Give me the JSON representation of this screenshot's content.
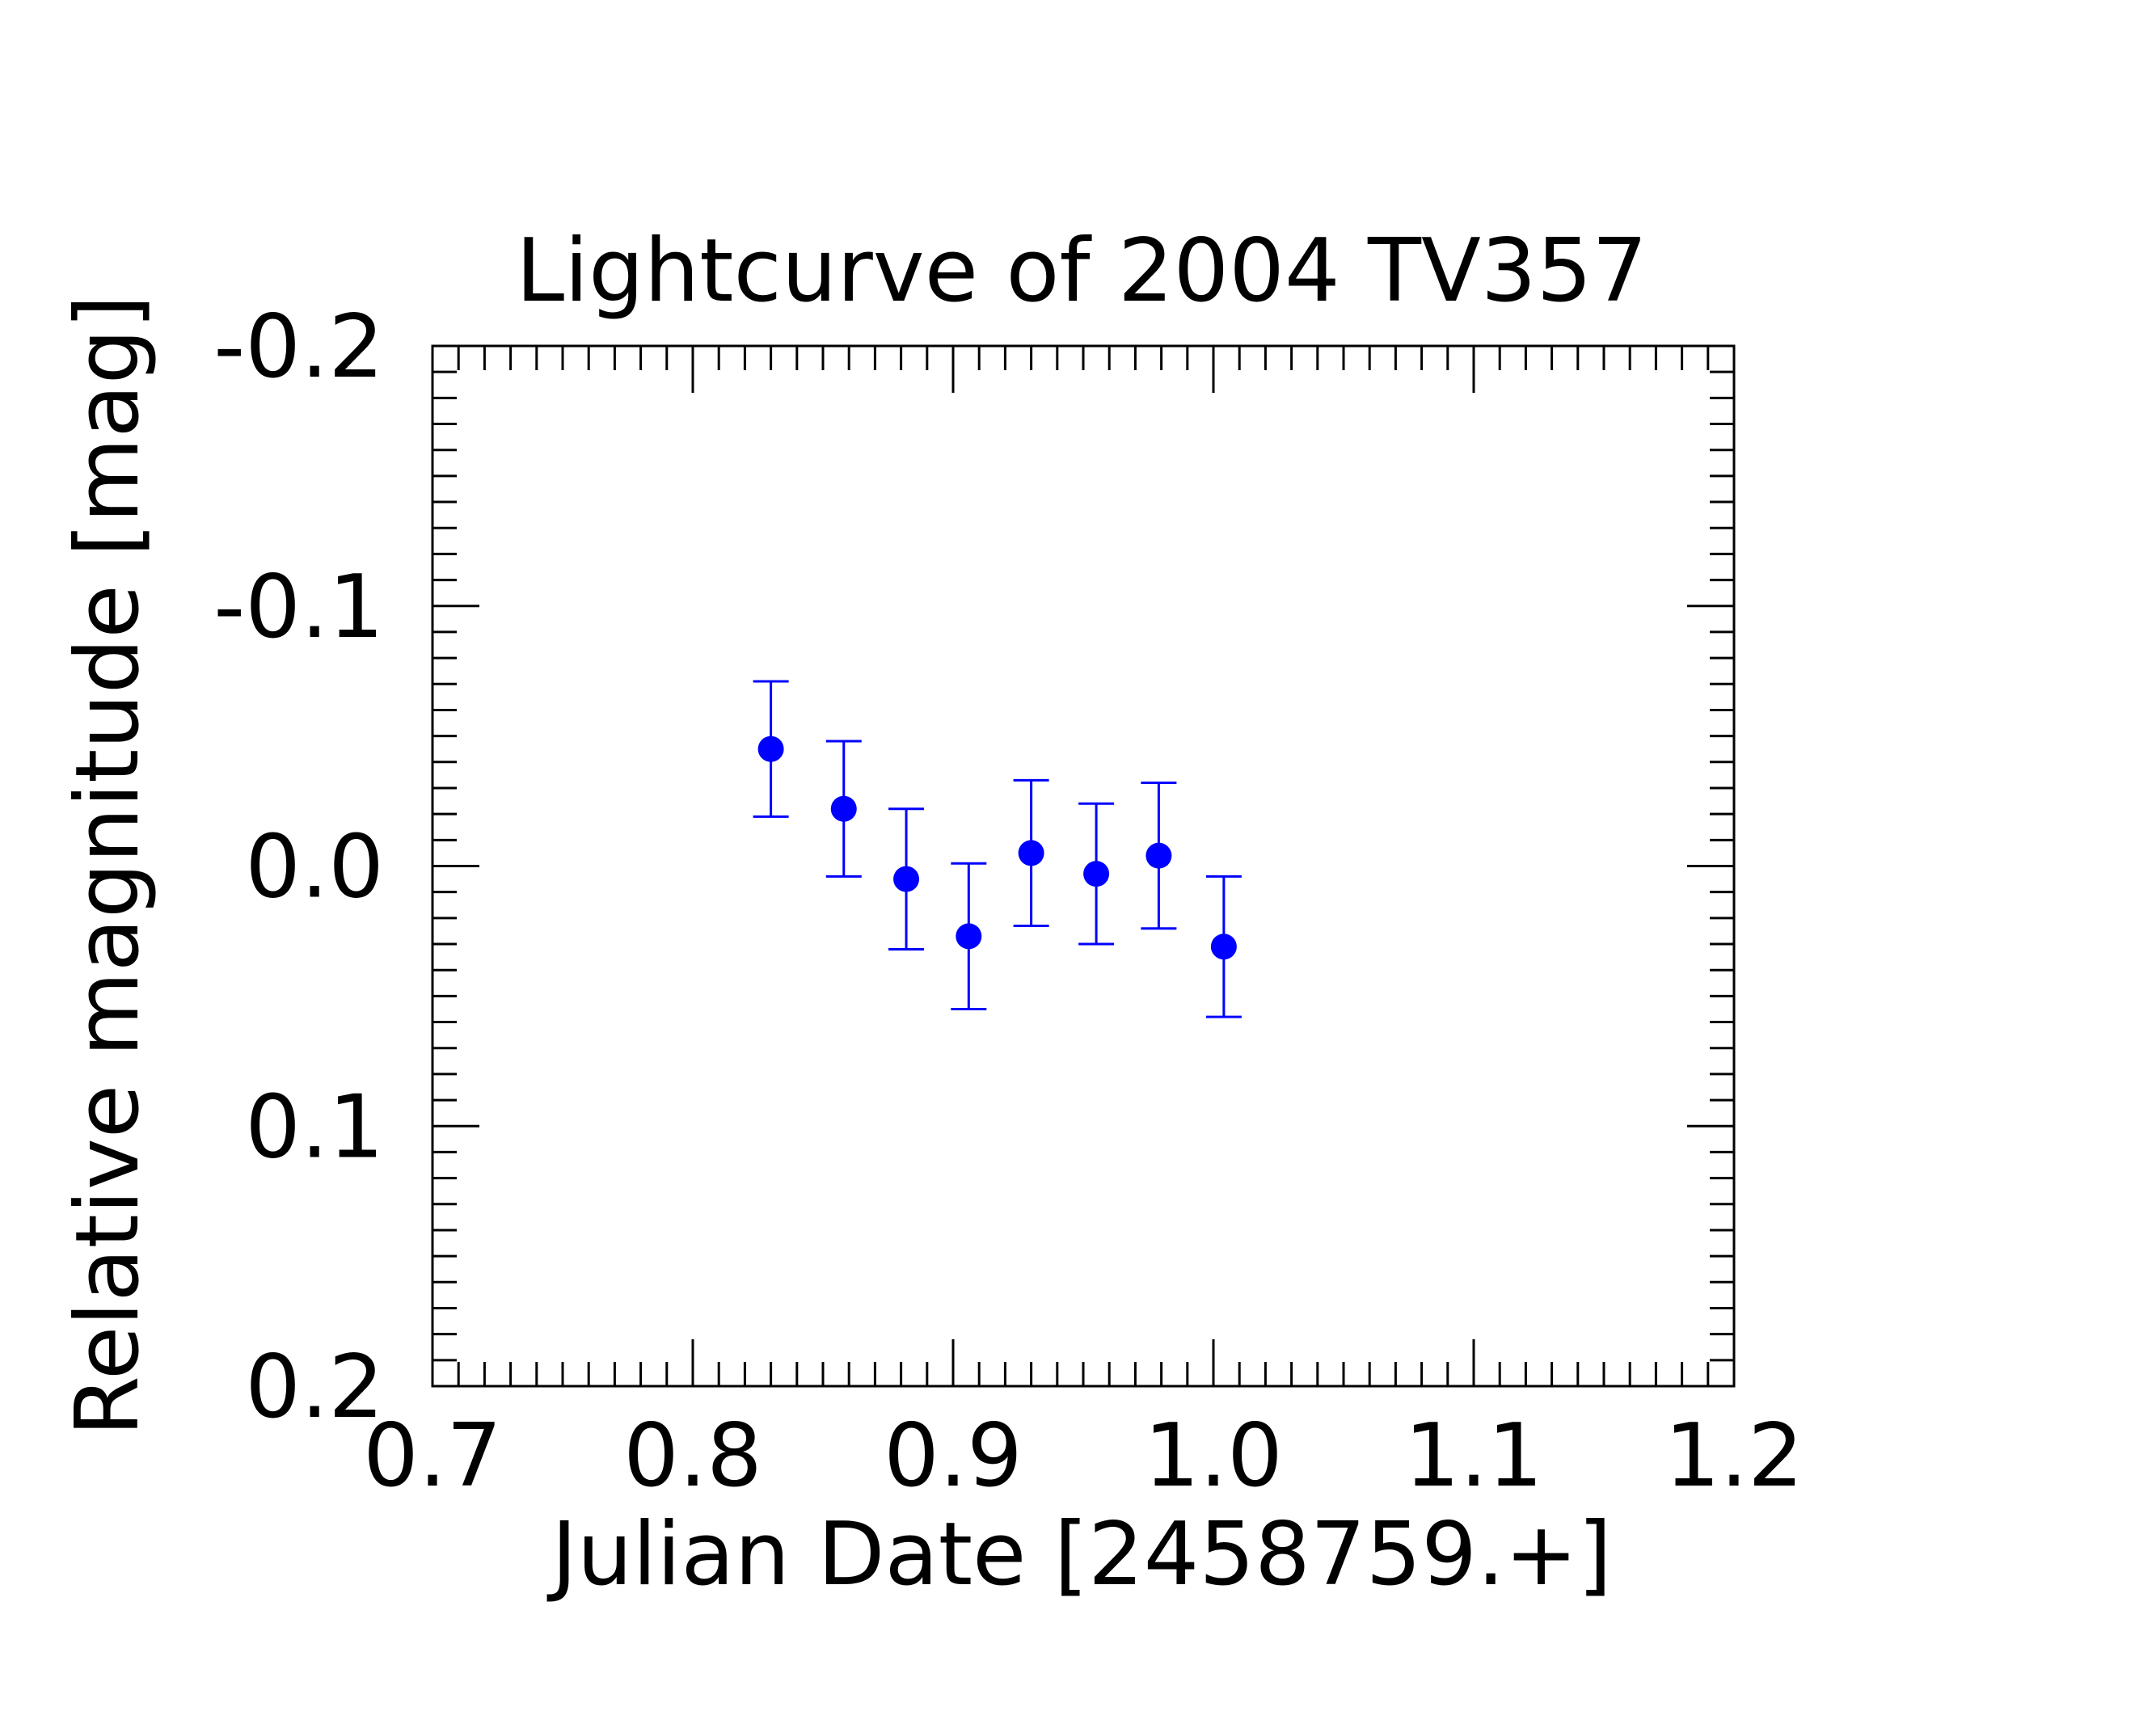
{
  "chart_data": {
    "type": "scatter",
    "title": "Lightcurve of 2004 TV357",
    "xlabel": "Julian Date [2458759.+]",
    "ylabel": "Relative magnitude [mag]",
    "xlim": [
      0.7,
      1.2
    ],
    "ylim": [
      0.2,
      -0.2
    ],
    "y_inverted": true,
    "grid": false,
    "xticks": [
      "0.7",
      "0.8",
      "0.9",
      "1.0",
      "1.1",
      "1.2"
    ],
    "yticks": [
      "-0.2",
      "-0.1",
      "0.0",
      "0.1",
      "0.2"
    ],
    "marker_color": "#0000ff",
    "series": [
      {
        "x": [
          0.83,
          0.858,
          0.882,
          0.906,
          0.93,
          0.955,
          0.979,
          1.004
        ],
        "y": [
          -0.045,
          -0.022,
          0.005,
          0.027,
          -0.005,
          0.003,
          -0.004,
          0.031
        ],
        "yerr": [
          0.026,
          0.026,
          0.027,
          0.028,
          0.028,
          0.027,
          0.028,
          0.027
        ]
      }
    ]
  }
}
